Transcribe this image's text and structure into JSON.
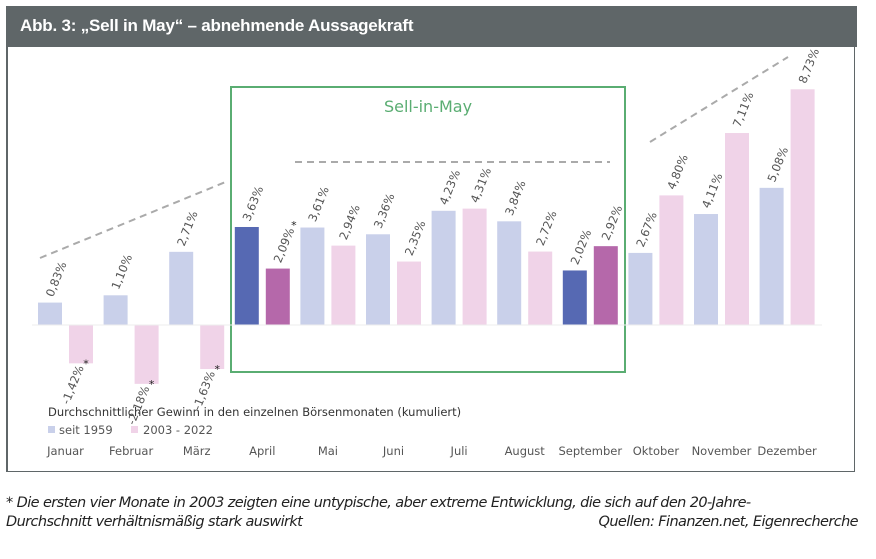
{
  "header": {
    "title": "Abb. 3: „Sell in May“ – abnehmende Aussagekraft"
  },
  "footnote": {
    "line1": "* Die ersten vier Monate in 2003 zeigten eine untypische, aber extreme Entwicklung, die sich auf den 20-Jahre-",
    "line2_left": "Durchschnitt verhältnismäßig stark auswirkt",
    "line2_right": "Quellen: Finanzen.net, Eigenrecherche"
  },
  "chart_data": {
    "type": "bar",
    "title": "Durchschnittlicher Gewinn in den einzelnen Börsenmonaten (kumuliert)",
    "xlabel": "",
    "ylabel": "",
    "unit": "%",
    "categories": [
      "Januar",
      "Februar",
      "März",
      "April",
      "Mai",
      "Juni",
      "Juli",
      "August",
      "September",
      "Oktober",
      "November",
      "Dezember"
    ],
    "series": [
      {
        "name": "seit 1959",
        "values": [
          0.83,
          1.1,
          2.71,
          3.63,
          3.61,
          3.36,
          4.23,
          3.84,
          2.02,
          2.67,
          4.11,
          5.08
        ],
        "labels": [
          "0,83%",
          "1,10%",
          "2,71%",
          "3,63%",
          "3,61%",
          "3,36%",
          "4,23%",
          "3,84%",
          "2,02%",
          "2,67%",
          "4,11%",
          "5,08%"
        ],
        "starred": [
          false,
          false,
          false,
          false,
          false,
          false,
          false,
          false,
          false,
          false,
          false,
          false
        ],
        "color": "#c9d0ea",
        "highlight_color": "#5669b3"
      },
      {
        "name": "2003 - 2022",
        "values": [
          -1.42,
          -2.18,
          -1.63,
          2.09,
          2.94,
          2.35,
          4.31,
          2.72,
          2.92,
          4.8,
          7.11,
          8.73
        ],
        "labels": [
          "-1,42%",
          "-2,18%",
          "-1,63%",
          "2,09%",
          "2,94%",
          "2,35%",
          "4,31%",
          "2,72%",
          "2,92%",
          "4,80%",
          "7,11%",
          "8,73%"
        ],
        "starred": [
          true,
          true,
          true,
          true,
          false,
          false,
          false,
          false,
          false,
          false,
          false,
          false
        ],
        "color": "#f0d3e8",
        "highlight_color": "#b568aa"
      }
    ],
    "highlighted_months": [
      "April",
      "September"
    ],
    "annotation_box": {
      "label": "Sell-in-May",
      "from": "April",
      "to": "September",
      "color": "#5aad72"
    },
    "trend_lines": [
      "rising January→April",
      "flat May→September",
      "rising October→December"
    ],
    "legend": {
      "position": "bottom-left",
      "entries": [
        "seit 1959",
        "2003 - 2022"
      ]
    },
    "ylim": [
      -2.5,
      9
    ],
    "grid": false
  }
}
